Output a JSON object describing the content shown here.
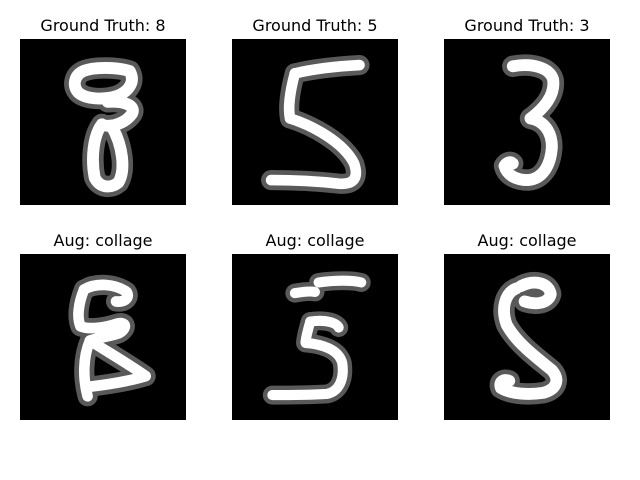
{
  "figure": {
    "background": "#ffffff",
    "image_background": "#000000",
    "stroke_color": "#ffffff"
  },
  "panels": [
    {
      "title": "Ground Truth: 8",
      "digit_icon": "handwritten-8"
    },
    {
      "title": "Ground Truth: 5",
      "digit_icon": "handwritten-5"
    },
    {
      "title": "Ground Truth: 3",
      "digit_icon": "handwritten-3"
    },
    {
      "title": "Aug: collage",
      "digit_icon": "collage-8"
    },
    {
      "title": "Aug: collage",
      "digit_icon": "collage-5"
    },
    {
      "title": "Aug: collage",
      "digit_icon": "collage-3"
    }
  ]
}
